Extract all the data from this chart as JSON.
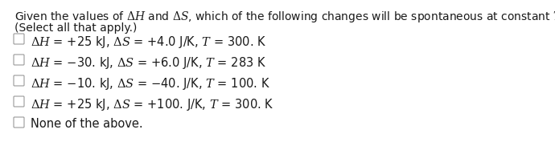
{
  "title_line": "Given the values of $\\Delta H$ and $\\Delta S$, which of the following changes will be spontaneous at constant $T$ and $P$?",
  "subtitle": "(Select all that apply.)",
  "options": [
    "$\\Delta H$ = +25 kJ, $\\Delta S$ = +4.0 J/K, $T$ = 300. K",
    "$\\Delta H$ = −30. kJ, $\\Delta S$ = +6.0 J/K, $T$ = 283 K",
    "$\\Delta H$ = −10. kJ, $\\Delta S$ = −40. J/K, $T$ = 100. K",
    "$\\Delta H$ = +25 kJ, $\\Delta S$ = +100. J/K, $T$ = 300. K",
    "None of the above."
  ],
  "bg_color": "#ffffff",
  "text_color": "#1a1a1a",
  "font_size_title": 10.0,
  "font_size_subtitle": 10.0,
  "font_size_options": 10.5,
  "checkbox_color": "#ffffff",
  "checkbox_edge": "#999999"
}
